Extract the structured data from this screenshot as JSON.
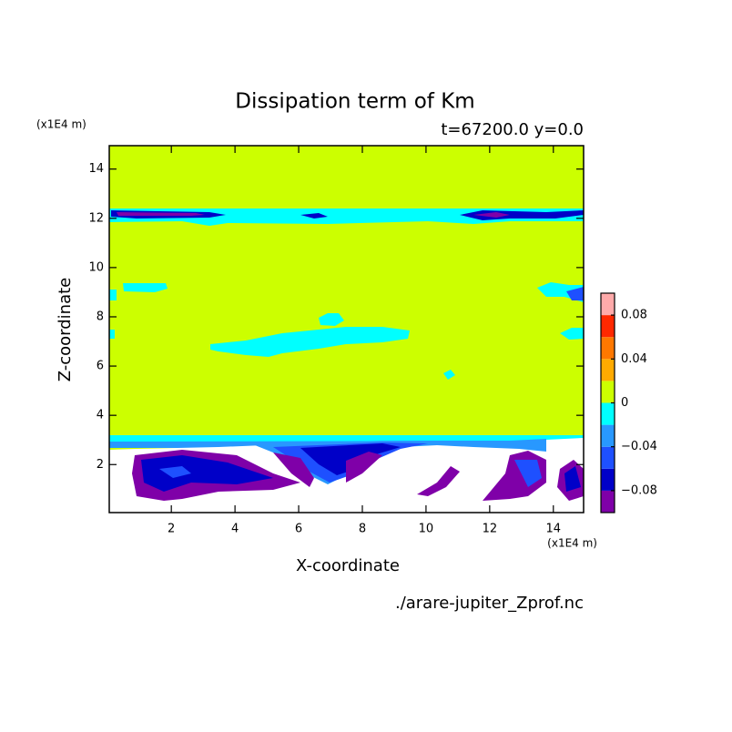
{
  "chart_data": {
    "type": "contour",
    "title": "Dissipation term of Km",
    "subtitle": "t=67200.0 y=0.0",
    "x_label": "X-coordinate",
    "y_label": "Z-coordinate",
    "x_unit": "(x1E4 m)",
    "y_unit": "(x1E4 m)",
    "source": "./arare-jupiter_Zprof.nc",
    "xlim": [
      0.05,
      14.95
    ],
    "ylim": [
      0.05,
      14.95
    ],
    "xticks": [
      2,
      4,
      6,
      8,
      10,
      12,
      14
    ],
    "yticks": [
      2,
      4,
      6,
      8,
      10,
      12,
      14
    ],
    "colorbar": {
      "levels": [
        -0.1,
        -0.08,
        -0.06,
        -0.04,
        -0.02,
        0,
        0.02,
        0.04,
        0.06,
        0.08,
        0.1
      ],
      "colors": [
        "#7f00a8",
        "#0000c8",
        "#1e50ff",
        "#2898ff",
        "#00ffff",
        "#ccff00",
        "#ffaa00",
        "#ff7800",
        "#ff2800",
        "#ffaaaa"
      ],
      "ticks": [
        {
          "value": -0.08,
          "label": "−0.08"
        },
        {
          "value": -0.04,
          "label": "−0.04"
        },
        0,
        0.04,
        0.08
      ]
    }
  }
}
